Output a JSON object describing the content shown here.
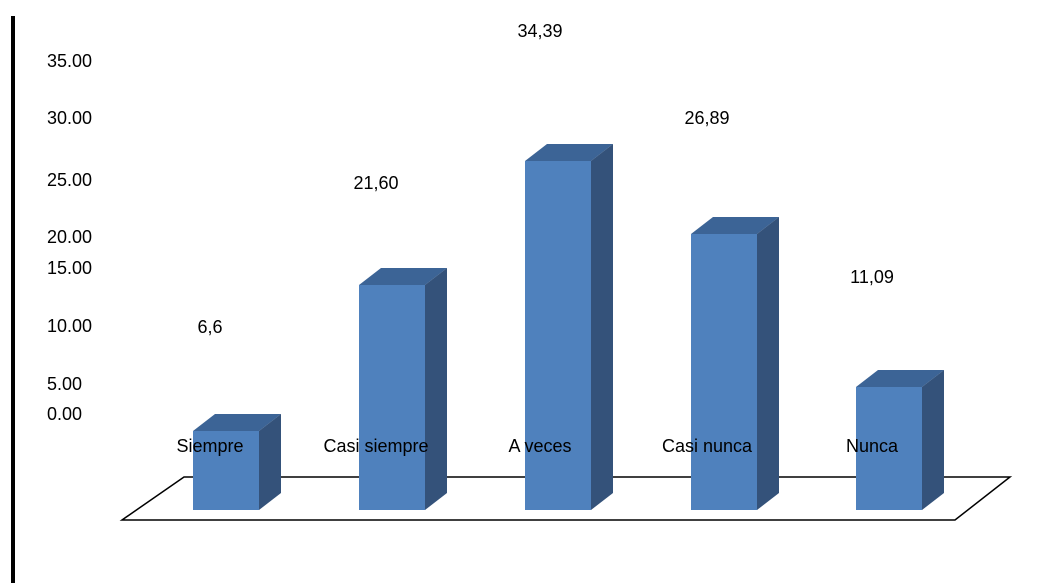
{
  "chart_data": {
    "type": "bar",
    "title": "",
    "xlabel": "",
    "ylabel": "",
    "categories": [
      "Siempre",
      "Casi siempre",
      "A veces",
      "Casi nunca",
      "Nunca"
    ],
    "values": [
      6.6,
      21.6,
      34.39,
      26.89,
      11.09
    ],
    "data_labels": [
      "6,6",
      "21,60",
      "34,39",
      "26,89",
      "11,09"
    ],
    "yticks": [
      "35.00",
      "30.00",
      "25.00",
      "20.00",
      "15.00",
      "10.00",
      "5.00",
      "0.00"
    ],
    "ylim": [
      0,
      35
    ],
    "grid": false,
    "legend": "none",
    "style": "3d-column",
    "colors": {
      "bar_front": "#4F81BD",
      "bar_top": "#3C6496",
      "bar_side": "#34527A",
      "floor_stroke": "#000000",
      "frame": "#000000"
    }
  }
}
